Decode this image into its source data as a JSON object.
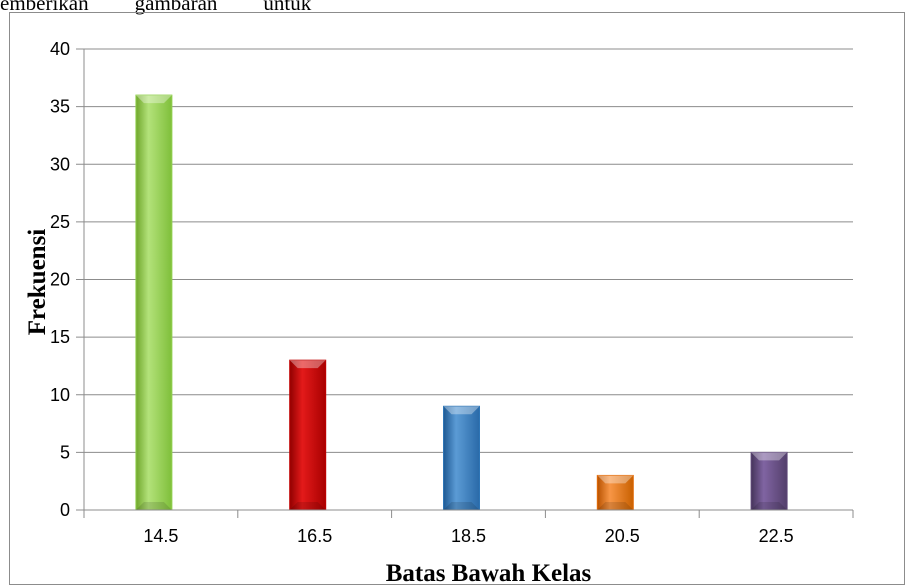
{
  "top_text": [
    "emberikan",
    "gambaran",
    "untuk"
  ],
  "chart_data": {
    "type": "bar",
    "categories": [
      "14.5",
      "16.5",
      "18.5",
      "20.5",
      "22.5"
    ],
    "values": [
      36,
      13,
      9,
      3,
      5
    ],
    "xlabel": "Batas Bawah Kelas",
    "ylabel": "Frekuensi",
    "ylim": [
      0,
      40
    ],
    "yticks": [
      0,
      5,
      10,
      15,
      20,
      25,
      30,
      35,
      40
    ],
    "grid": true,
    "legend": "none",
    "colors": [
      "#92d050",
      "#c00000",
      "#2e75b6",
      "#e36c09",
      "#60497a"
    ]
  }
}
